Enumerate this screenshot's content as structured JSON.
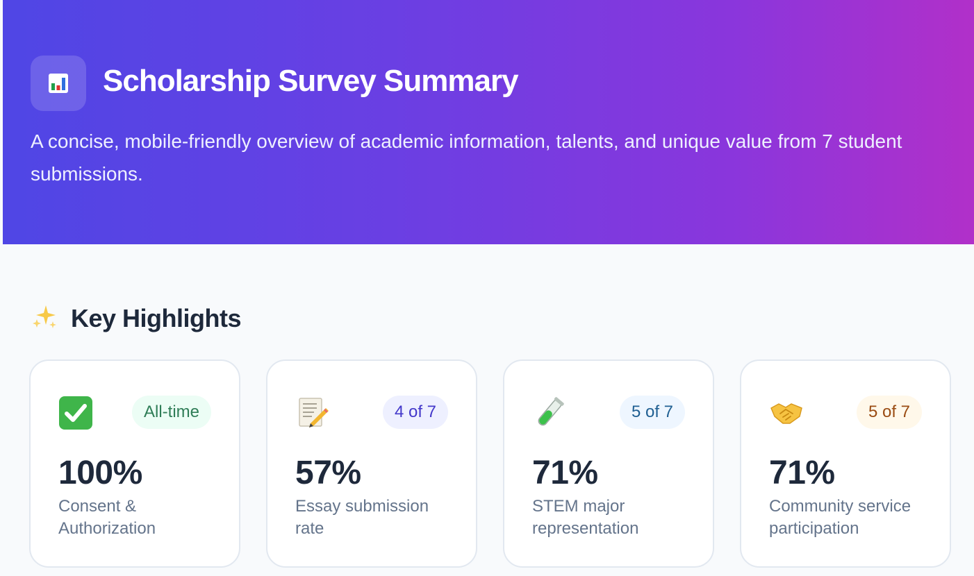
{
  "header": {
    "icon": "bar-chart-icon",
    "title": "Scholarship Survey Summary",
    "subtitle": "A concise, mobile-friendly overview of academic information, talents, and unique value from 7 student submissions."
  },
  "highlights": {
    "icon": "sparkles-icon",
    "title": "Key Highlights",
    "cards": [
      {
        "icon": "check-mark-icon",
        "badge": "All-time",
        "value": "100%",
        "label": "Consent & Authorization",
        "badge_color": "#ecfdf5"
      },
      {
        "icon": "memo-icon",
        "badge": "4 of 7",
        "value": "57%",
        "label": "Essay submission rate",
        "badge_color": "#eef0ff"
      },
      {
        "icon": "test-tube-icon",
        "badge": "5 of 7",
        "value": "71%",
        "label": "STEM major representation",
        "badge_color": "#eef6ff"
      },
      {
        "icon": "handshake-icon",
        "badge": "5 of 7",
        "value": "71%",
        "label": "Community service participation",
        "badge_color": "#fff8ea"
      }
    ]
  },
  "colors": {
    "gradient_start": "#4f46e5",
    "gradient_end": "#b130c9",
    "page_background": "#f8fafc",
    "text_primary": "#1e293b",
    "text_muted": "#64748b"
  }
}
